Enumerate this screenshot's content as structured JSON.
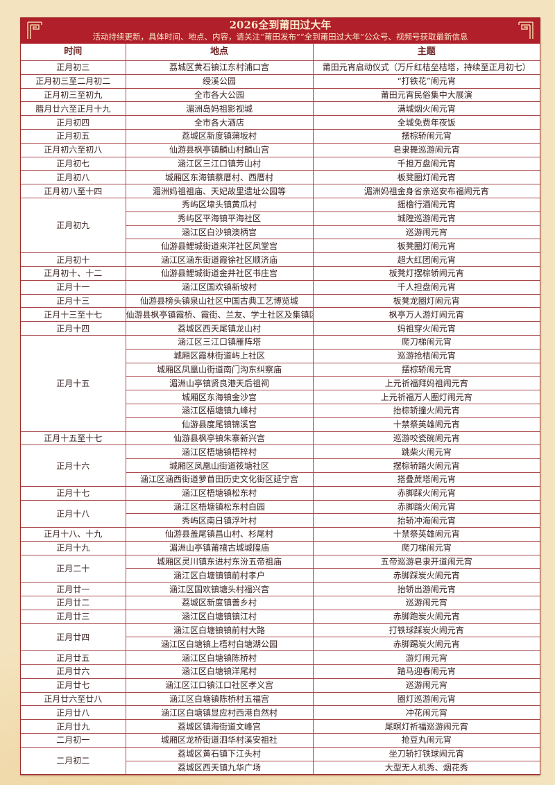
{
  "header": {
    "title": "2026全到莆田过大年",
    "subtitle": "活动持续更新，具体时间、地点、内容，请关注“莆田发布”“全到莆田过大年”公众号、视频号获取最新信息",
    "accent_color": "#b01f2a"
  },
  "columns": {
    "time": "时间",
    "place": "地点",
    "theme": "主题"
  },
  "groups": [
    {
      "time": "正月初三",
      "items": [
        {
          "place": "荔城区黄石镇江东村浦口宫",
          "theme": "莆田元宵启动仪式（万斤红桔垒桔塔，持续至正月初七）"
        }
      ]
    },
    {
      "time": "正月初三至二月初二",
      "items": [
        {
          "place": "绶溪公园",
          "theme": "“打铁花”闹元宵"
        }
      ]
    },
    {
      "time": "正月初三至初九",
      "items": [
        {
          "place": "全市各大公园",
          "theme": "莆田元宵民俗集中大展演"
        }
      ]
    },
    {
      "time": "腊月廿六至正月十九",
      "items": [
        {
          "place": "湄洲岛妈祖影视城",
          "theme": "满城烟火闹元宵"
        }
      ]
    },
    {
      "time": "正月初四",
      "items": [
        {
          "place": "全市各大酒店",
          "theme": "全城免费年夜饭"
        }
      ]
    },
    {
      "time": "正月初五",
      "items": [
        {
          "place": "荔城区新度镇蒲坂村",
          "theme": "摆棕轿闹元宵"
        }
      ]
    },
    {
      "time": "正月初六至初八",
      "items": [
        {
          "place": "仙游县枫亭镇麟山村麟山宫",
          "theme": "皂隶舞巡游闹元宵"
        }
      ]
    },
    {
      "time": "正月初七",
      "items": [
        {
          "place": "涵江区三江口镇芳山村",
          "theme": "千担万盘闹元宵"
        }
      ]
    },
    {
      "time": "正月初八",
      "items": [
        {
          "place": "城厢区东海镇蔡厝村、西厝村",
          "theme": "板凳圈灯闹元宵"
        }
      ]
    },
    {
      "time": "正月初八至十四",
      "items": [
        {
          "place": "湄洲妈祖祖庙、天妃故里遗址公园等",
          "theme": "湄洲妈祖金身省亲巡安布福闹元宵"
        }
      ]
    },
    {
      "time": "正月初九",
      "items": [
        {
          "place": "秀屿区埭头镇黄瓜村",
          "theme": "摇橹行酒闹元宵"
        },
        {
          "place": "秀屿区平海镇平海社区",
          "theme": "城隍巡游闹元宵"
        },
        {
          "place": "涵江区白沙镇澳柄宫",
          "theme": "巡游闹元宵"
        },
        {
          "place": "仙游县鲤城街道来洋社区凤堂宫",
          "theme": "板凳圈灯闹元宵"
        }
      ]
    },
    {
      "time": "正月初十",
      "items": [
        {
          "place": "涵江区涵东街道霞徐社区顺济庙",
          "theme": "超大红团闹元宵"
        }
      ]
    },
    {
      "time": "正月初十、十二",
      "items": [
        {
          "place": "仙游县鲤城街道金井社区书庄宫",
          "theme": "板凳灯摆棕轿闹元宵"
        }
      ]
    },
    {
      "time": "正月十一",
      "items": [
        {
          "place": "涵江区国欢镇新坡村",
          "theme": "千人担盘闹元宵"
        }
      ]
    },
    {
      "time": "正月十三",
      "items": [
        {
          "place": "仙游县榜头镇泉山社区中国古典工艺博览城",
          "theme": "板凳龙圈灯闹元宵"
        }
      ]
    },
    {
      "time": "正月十三至十七",
      "items": [
        {
          "place": "仙游县枫亭镇霞桥、霞街、兰友、学士社区及集镇区",
          "theme": "枫亭万人游灯闹元宵"
        }
      ]
    },
    {
      "time": "正月十四",
      "items": [
        {
          "place": "荔城区西天尾镇龙山村",
          "theme": "妈祖穿火闹元宵"
        }
      ]
    },
    {
      "time": "正月十五",
      "items": [
        {
          "place": "涵江区三江口镇雁阵塔",
          "theme": "爬刀梯闹元宵"
        },
        {
          "place": "城厢区霞林街道屿上社区",
          "theme": "巡游抢桔闹元宵"
        },
        {
          "place": "城厢区凤凰山街道南门沟东纠察庙",
          "theme": "摆棕轿闹元宵"
        },
        {
          "place": "湄洲山亭镇贤良港天后祖祠",
          "theme": "上元祈福拜妈祖闹元宵"
        },
        {
          "place": "城厢区东海镇金沙宫",
          "theme": "上元祈福万人圈灯闹元宵"
        },
        {
          "place": "涵江区梧塘镇九峰村",
          "theme": "抬棕轿撞火闹元宵"
        },
        {
          "place": "仙游县度尾镇锦溪宫",
          "theme": "十禁祭英雄闹元宵"
        }
      ]
    },
    {
      "time": "正月十五至十七",
      "items": [
        {
          "place": "仙游县枫亭镇朱寨新兴宫",
          "theme": "巡游咬瓷碗闹元宵"
        }
      ]
    },
    {
      "time": "正月十六",
      "items": [
        {
          "place": "涵江区梧塘镇梧梓村",
          "theme": "跳柴火闹元宵"
        },
        {
          "place": "城厢区凤凰山街道筱塘社区",
          "theme": "摆棕轿踏火闹元宵"
        },
        {
          "place": "涵江区涵西街道萝苜田历史文化街区延宁宫",
          "theme": "搭叠蔗塔闹元宵"
        }
      ]
    },
    {
      "time": "正月十七",
      "items": [
        {
          "place": "涵江区梧塘镇松东村",
          "theme": "赤脚踩火闹元宵"
        }
      ]
    },
    {
      "time": "正月十八",
      "items": [
        {
          "place": "涵江区梧塘镇松东村白园",
          "theme": "赤脚踏火闹元宵"
        },
        {
          "place": "秀屿区南日镇浮叶村",
          "theme": "抬轿冲海闹元宵"
        }
      ]
    },
    {
      "time": "正月十八、十九",
      "items": [
        {
          "place": "仙游县盖尾镇昌山村、杉尾村",
          "theme": "十禁祭英雄闹元宵"
        }
      ]
    },
    {
      "time": "正月十九",
      "items": [
        {
          "place": "湄洲山亭镇莆禧古城城隍庙",
          "theme": "爬刀梯闹元宵"
        }
      ]
    },
    {
      "time": "正月二十",
      "items": [
        {
          "place": "城厢区灵川镇东进村东汾五帝祖庙",
          "theme": "五帝巡游皂隶开道闹元宵"
        },
        {
          "place": "涵江区白塘镇镇前村孝户",
          "theme": "赤脚踩炭火闹元宵"
        }
      ]
    },
    {
      "time": "正月廿一",
      "items": [
        {
          "place": "涵江区国欢镇塘头村福兴宫",
          "theme": "抬轿出游闹元宵"
        }
      ]
    },
    {
      "time": "正月廿二",
      "items": [
        {
          "place": "荔城区新度镇善乡村",
          "theme": "巡游闹元宵"
        }
      ]
    },
    {
      "time": "正月廿三",
      "items": [
        {
          "place": "涵江区白塘镇镇江村",
          "theme": "赤脚跑炭火闹元宵"
        }
      ]
    },
    {
      "time": "正月廿四",
      "items": [
        {
          "place": "涵江区白塘镇镇前村大路",
          "theme": "打铁球踩炭火闹元宵"
        },
        {
          "place": "涵江区白塘镇上梧村白塘湖公园",
          "theme": "赤脚踢炭火闹元宵"
        }
      ]
    },
    {
      "time": "正月廿五",
      "items": [
        {
          "place": "涵江区白塘镇陈桥村",
          "theme": "游灯闹元宵"
        }
      ]
    },
    {
      "time": "正月廿六",
      "items": [
        {
          "place": "涵江区白塘镇洋尾村",
          "theme": "踏马迎春闹元宵"
        }
      ]
    },
    {
      "time": "正月廿七",
      "items": [
        {
          "place": "涵江区江口镇江口社区孝义宫",
          "theme": "巡游闹元宵"
        }
      ]
    },
    {
      "time": "正月廿六至廿八",
      "items": [
        {
          "place": "涵江区白塘镇陈桥村五福宫",
          "theme": "圈灯巡游闹元宵"
        }
      ]
    },
    {
      "time": "正月廿八",
      "items": [
        {
          "place": "涵江区白塘镇显应村西港自然村",
          "theme": "冲花闹元宵"
        }
      ]
    },
    {
      "time": "正月廿九",
      "items": [
        {
          "place": "荔城区镇海街道文峰宫",
          "theme": "尾暝灯祈福巡游闹元宵"
        }
      ]
    },
    {
      "time": "二月初一",
      "items": [
        {
          "place": "城厢区龙桥街道泗华村溪安祖社",
          "theme": "抢豆丸闹元宵"
        }
      ]
    },
    {
      "time": "二月初二",
      "items": [
        {
          "place": "荔城区黄石镇下江头村",
          "theme": "坐刀轿打铁球闹元宵"
        },
        {
          "place": "荔城区西天镇九华广场",
          "theme": "大型无人机秀、烟花秀"
        }
      ]
    }
  ]
}
